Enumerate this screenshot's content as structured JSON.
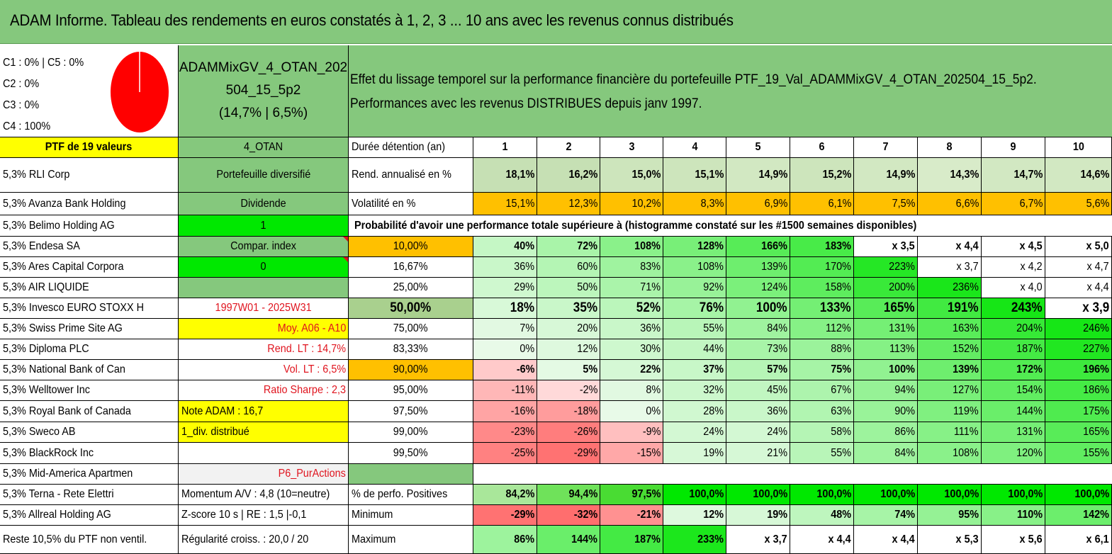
{
  "title": "ADAM Informe. Tableau des rendements en euros constatés à 1, 2, 3 ... 10 ans avec les revenus connus distribués",
  "allocation": {
    "lines": [
      "C1 : 0% | C5 : 0%",
      "C2 : 0%",
      "C3 : 0%",
      "C4 : 100%"
    ],
    "pie_color": "#ff0000",
    "pie_share_c4": 100
  },
  "portfolio_name": {
    "line1": "ADAMMixGV_4_OTAN_202",
    "line2": "504_15_5p2",
    "line3": "(14,7% | 6,5%)"
  },
  "description": {
    "line1": "Effet du lissage temporel sur la performance financière du portefeuille PTF_19_Val_ADAMMixGV_4_OTAN_202504_15_5p2.",
    "line2": "Performances avec les revenus DISTRIBUES depuis janv 1997."
  },
  "holdings": [
    "PTF de 19 valeurs",
    "5,3% RLI Corp",
    "5,3% Avanza Bank Holding",
    "5,3% Belimo Holding AG",
    "5,3% Endesa SA",
    "5,3% Ares Capital Corpora",
    "5,3% AIR LIQUIDE",
    "5,3% Invesco EURO STOXX H",
    "5,3% Swiss Prime Site AG",
    "5,3% Diploma PLC",
    "5,3% National Bank of Can",
    "5,3% Welltower Inc",
    "5,3% Royal Bank of Canada",
    "5,3% Sweco AB",
    "5,3% BlackRock Inc",
    "5,3% Mid-America Apartmen",
    "5,3% Terna - Rete Elettri",
    "5,3% Allreal Holding AG",
    "Reste 10,5% du PTF non ventil."
  ],
  "info": [
    "4_OTAN",
    "Portefeuille diversifié",
    "Dividende",
    "1",
    "Compar. index",
    "0",
    "",
    "1997W01 - 2025W31",
    "Moy. A06 - A10",
    "Rend. LT : 14,7%",
    "Vol. LT : 6,5%",
    "Ratio Sharpe : 2,3",
    "Note ADAM : 16,7",
    "1_div. distribué",
    "",
    "P6_PurActions",
    "Momentum A/V : 4,8 (10=neutre)",
    "Z-score 10 s | RE : 1,5 |-0,1",
    "Régularité croiss. : 20,0 / 20"
  ],
  "colors": {
    "title_green": "#85c87d",
    "yellow": "#ffff00",
    "orange": "#ffc000",
    "bright_green": "#00e800",
    "grey": "#f2f2f2",
    "red_text": "#e0141e"
  },
  "table": {
    "duration_label": "Durée détention (an)",
    "years": [
      "1",
      "2",
      "3",
      "4",
      "5",
      "6",
      "7",
      "8",
      "9",
      "10"
    ],
    "return_label": "Rend. annualisé en %",
    "returns": [
      "18,1%",
      "16,2%",
      "15,0%",
      "15,1%",
      "14,9%",
      "15,2%",
      "14,9%",
      "14,3%",
      "14,7%",
      "14,6%"
    ],
    "volatility_label": "Volatilité en %",
    "volatility": [
      "15,1%",
      "12,3%",
      "10,2%",
      "8,3%",
      "6,9%",
      "6,1%",
      "7,5%",
      "6,6%",
      "6,7%",
      "5,6%"
    ],
    "probability_caption": "Probabilité d'avoir une performance totale supérieure à (histogramme constaté sur les #1500 semaines disponibles)",
    "prob_rows": [
      {
        "p": "10,00%",
        "v": [
          "40%",
          "72%",
          "108%",
          "128%",
          "166%",
          "183%",
          "x 3,5",
          "x 4,4",
          "x 4,5",
          "x 5,0"
        ]
      },
      {
        "p": "16,67%",
        "v": [
          "36%",
          "60%",
          "83%",
          "108%",
          "139%",
          "170%",
          "223%",
          "x 3,7",
          "x 4,2",
          "x 4,7"
        ]
      },
      {
        "p": "25,00%",
        "v": [
          "29%",
          "50%",
          "71%",
          "92%",
          "124%",
          "158%",
          "200%",
          "236%",
          "x 4,0",
          "x 4,4"
        ]
      },
      {
        "p": "50,00%",
        "v": [
          "18%",
          "35%",
          "52%",
          "76%",
          "100%",
          "133%",
          "165%",
          "191%",
          "243%",
          "x 3,9"
        ]
      },
      {
        "p": "75,00%",
        "v": [
          "7%",
          "20%",
          "36%",
          "55%",
          "84%",
          "112%",
          "131%",
          "163%",
          "204%",
          "246%"
        ]
      },
      {
        "p": "83,33%",
        "v": [
          "0%",
          "12%",
          "30%",
          "44%",
          "73%",
          "88%",
          "113%",
          "152%",
          "187%",
          "227%"
        ]
      },
      {
        "p": "90,00%",
        "v": [
          "-6%",
          "5%",
          "22%",
          "37%",
          "57%",
          "75%",
          "100%",
          "139%",
          "172%",
          "196%"
        ]
      },
      {
        "p": "95,00%",
        "v": [
          "-11%",
          "-2%",
          "8%",
          "32%",
          "45%",
          "67%",
          "94%",
          "127%",
          "154%",
          "186%"
        ]
      },
      {
        "p": "97,50%",
        "v": [
          "-16%",
          "-18%",
          "0%",
          "28%",
          "36%",
          "63%",
          "90%",
          "119%",
          "144%",
          "175%"
        ]
      },
      {
        "p": "99,00%",
        "v": [
          "-23%",
          "-26%",
          "-9%",
          "24%",
          "24%",
          "58%",
          "86%",
          "111%",
          "131%",
          "165%"
        ]
      },
      {
        "p": "99,50%",
        "v": [
          "-25%",
          "-29%",
          "-15%",
          "19%",
          "21%",
          "55%",
          "84%",
          "108%",
          "120%",
          "155%"
        ]
      }
    ],
    "positive_label": "% de perfo. Positives",
    "positive": [
      "84,2%",
      "94,4%",
      "97,5%",
      "100,0%",
      "100,0%",
      "100,0%",
      "100,0%",
      "100,0%",
      "100,0%",
      "100,0%"
    ],
    "minimum_label": "Minimum",
    "minimum": [
      "-29%",
      "-32%",
      "-21%",
      "12%",
      "19%",
      "48%",
      "74%",
      "95%",
      "110%",
      "142%"
    ],
    "maximum_label": "Maximum",
    "maximum": [
      "86%",
      "144%",
      "187%",
      "233%",
      "x 3,7",
      "x 4,4",
      "x 4,4",
      "x 5,3",
      "x 5,6",
      "x 6,1"
    ]
  }
}
